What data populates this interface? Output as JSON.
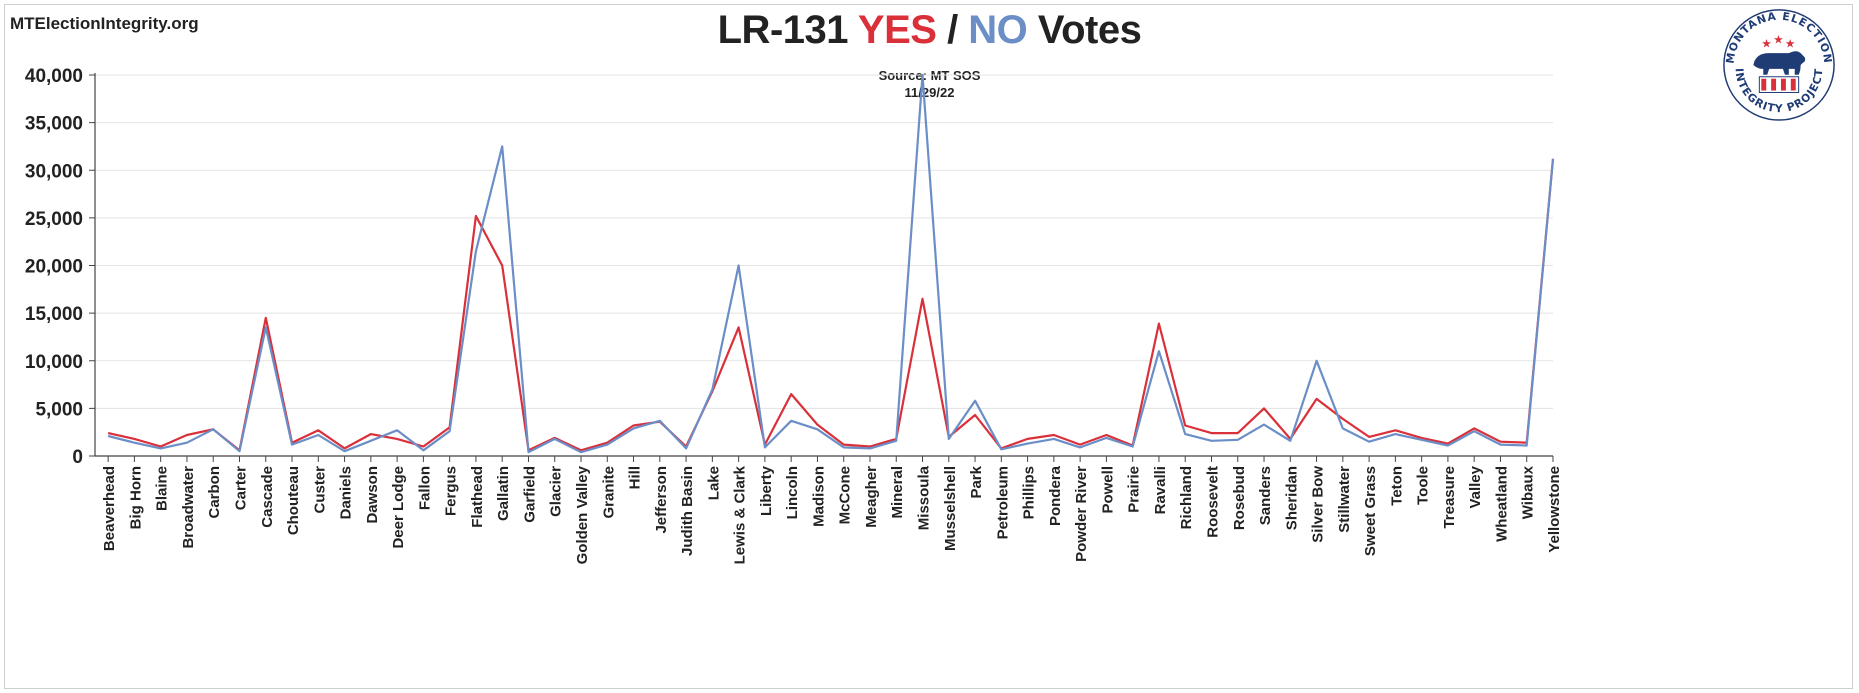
{
  "site": {
    "url": "MTElectionIntegrity.org"
  },
  "title": {
    "prefix": "LR-131 ",
    "yes": "YES",
    "sep": " / ",
    "no": "NO",
    "suffix": " Votes"
  },
  "source": {
    "line1": "Source: MT SOS",
    "line2": "11/29/22"
  },
  "logo": {
    "text_top": "MONTANA ELECTION",
    "text_bottom": "INTEGRITY PROJECT"
  },
  "colors": {
    "yes": "#d9303a",
    "no": "#6b8ec7",
    "grid": "#e3e3e3",
    "axis": "#444444",
    "text": "#222222"
  },
  "chart_data": {
    "type": "line",
    "xlabel": "",
    "ylabel": "",
    "ylim": [
      0,
      40000
    ],
    "yticks": [
      "0",
      "5,000",
      "10,000",
      "15,000",
      "20,000",
      "25,000",
      "30,000",
      "35,000",
      "40,000"
    ],
    "grid": true,
    "categories": [
      "Beaverhead",
      "Big Horn",
      "Blaine",
      "Broadwater",
      "Carbon",
      "Carter",
      "Cascade",
      "Chouteau",
      "Custer",
      "Daniels",
      "Dawson",
      "Deer Lodge",
      "Fallon",
      "Fergus",
      "Flathead",
      "Gallatin",
      "Garfield",
      "Glacier",
      "Golden Valley",
      "Granite",
      "Hill",
      "Jefferson",
      "Judith Basin",
      "Lake",
      "Lewis & Clark",
      "Liberty",
      "Lincoln",
      "Madison",
      "McCone",
      "Meagher",
      "Mineral",
      "Missoula",
      "Musselshell",
      "Park",
      "Petroleum",
      "Phillips",
      "Pondera",
      "Powder River",
      "Powell",
      "Prairie",
      "Ravalli",
      "Richland",
      "Roosevelt",
      "Rosebud",
      "Sanders",
      "Sheridan",
      "Silver Bow",
      "Stillwater",
      "Sweet Grass",
      "Teton",
      "Toole",
      "Treasure",
      "Valley",
      "Wheatland",
      "Wibaux",
      "Yellowstone"
    ],
    "series": [
      {
        "key": "yes",
        "values": [
          2400,
          1800,
          1000,
          2200,
          2800,
          600,
          14500,
          1400,
          2700,
          800,
          2300,
          1800,
          1000,
          3000,
          25200,
          20000,
          600,
          1900,
          600,
          1400,
          3200,
          3600,
          1000,
          6800,
          13500,
          1200,
          6500,
          3300,
          1200,
          1000,
          1800,
          16500,
          2000,
          4300,
          800,
          1800,
          2200,
          1200,
          2200,
          1100,
          13900,
          3200,
          2400,
          2400,
          5000,
          1800,
          6000,
          3900,
          2000,
          2700,
          1900,
          1300,
          2900,
          1500,
          1400,
          31200
        ]
      },
      {
        "key": "no",
        "values": [
          2100,
          1400,
          800,
          1400,
          2800,
          500,
          13500,
          1200,
          2200,
          500,
          1600,
          2700,
          600,
          2600,
          21500,
          32500,
          400,
          1800,
          400,
          1200,
          2900,
          3700,
          800,
          7000,
          20000,
          900,
          3700,
          2800,
          900,
          800,
          1600,
          40000,
          1800,
          5800,
          700,
          1300,
          1800,
          900,
          1900,
          1000,
          11000,
          2300,
          1600,
          1700,
          3300,
          1600,
          10000,
          2900,
          1500,
          2300,
          1700,
          1100,
          2600,
          1200,
          1100,
          31200
        ]
      }
    ]
  }
}
